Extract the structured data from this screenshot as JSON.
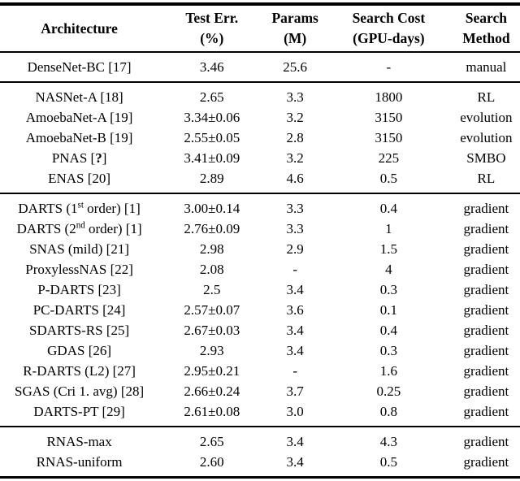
{
  "colors": {
    "background": "#ffffff",
    "text": "#000000",
    "rule": "#000000"
  },
  "table": {
    "headers": [
      {
        "line1": "Architecture",
        "line2": ""
      },
      {
        "line1": "Test Err.",
        "line2": "(%)"
      },
      {
        "line1": "Params",
        "line2": "(M)"
      },
      {
        "line1": "Search Cost",
        "line2": "(GPU-days)"
      },
      {
        "line1": "Search",
        "line2": "Method"
      }
    ],
    "sections": [
      {
        "rows": [
          {
            "architecture": "DenseNet-BC [17]",
            "test_err": "3.46",
            "params": "25.6",
            "search_cost": "-",
            "search_method": "manual"
          }
        ]
      },
      {
        "rows": [
          {
            "architecture": "NASNet-A [18]",
            "test_err": "2.65",
            "params": "3.3",
            "search_cost": "1800",
            "search_method": "RL"
          },
          {
            "architecture": "AmoebaNet-A [19]",
            "test_err": "3.34±0.06",
            "params": "3.2",
            "search_cost": "3150",
            "search_method": "evolution"
          },
          {
            "architecture": "AmoebaNet-B [19]",
            "test_err": "2.55±0.05",
            "params": "2.8",
            "search_cost": "3150",
            "search_method": "evolution"
          },
          {
            "architecture": "PNAS [*?*]",
            "test_err": "3.41±0.09",
            "params": "3.2",
            "search_cost": "225",
            "search_method": "SMBO"
          },
          {
            "architecture": "ENAS [20]",
            "test_err": "2.89",
            "params": "4.6",
            "search_cost": "0.5",
            "search_method": "RL"
          }
        ]
      },
      {
        "rows": [
          {
            "architecture": "DARTS (1^{st} order) [1]",
            "test_err": "3.00±0.14",
            "params": "3.3",
            "search_cost": "0.4",
            "search_method": "gradient"
          },
          {
            "architecture": "DARTS (2^{nd} order) [1]",
            "test_err": "2.76±0.09",
            "params": "3.3",
            "search_cost": "1",
            "search_method": "gradient"
          },
          {
            "architecture": "SNAS (mild) [21]",
            "test_err": "2.98",
            "params": "2.9",
            "search_cost": "1.5",
            "search_method": "gradient"
          },
          {
            "architecture": "ProxylessNAS [22]",
            "test_err": "2.08",
            "params": "-",
            "search_cost": "4",
            "search_method": "gradient"
          },
          {
            "architecture": "P-DARTS [23]",
            "test_err": "2.5",
            "params": "3.4",
            "search_cost": "0.3",
            "search_method": "gradient"
          },
          {
            "architecture": "PC-DARTS [24]",
            "test_err": "2.57±0.07",
            "params": "3.6",
            "search_cost": "0.1",
            "search_method": "gradient"
          },
          {
            "architecture": "SDARTS-RS [25]",
            "test_err": "2.67±0.03",
            "params": "3.4",
            "search_cost": "0.4",
            "search_method": "gradient"
          },
          {
            "architecture": "GDAS [26]",
            "test_err": "2.93",
            "params": "3.4",
            "search_cost": "0.3",
            "search_method": "gradient"
          },
          {
            "architecture": "R-DARTS (L2) [27]",
            "test_err": "2.95±0.21",
            "params": "-",
            "search_cost": "1.6",
            "search_method": "gradient"
          },
          {
            "architecture": "SGAS (Cri 1. avg) [28]",
            "test_err": "2.66±0.24",
            "params": "3.7",
            "search_cost": "0.25",
            "search_method": "gradient"
          },
          {
            "architecture": "DARTS-PT [29]",
            "test_err": "2.61±0.08",
            "params": "3.0",
            "search_cost": "0.8",
            "search_method": "gradient"
          }
        ]
      },
      {
        "rows": [
          {
            "architecture": "RNAS-max",
            "test_err": "2.65",
            "params": "3.4",
            "search_cost": "4.3",
            "search_method": "gradient"
          },
          {
            "architecture": "RNAS-uniform",
            "test_err": "2.60",
            "params": "3.4",
            "search_cost": "0.5",
            "search_method": "gradient"
          }
        ]
      }
    ]
  }
}
